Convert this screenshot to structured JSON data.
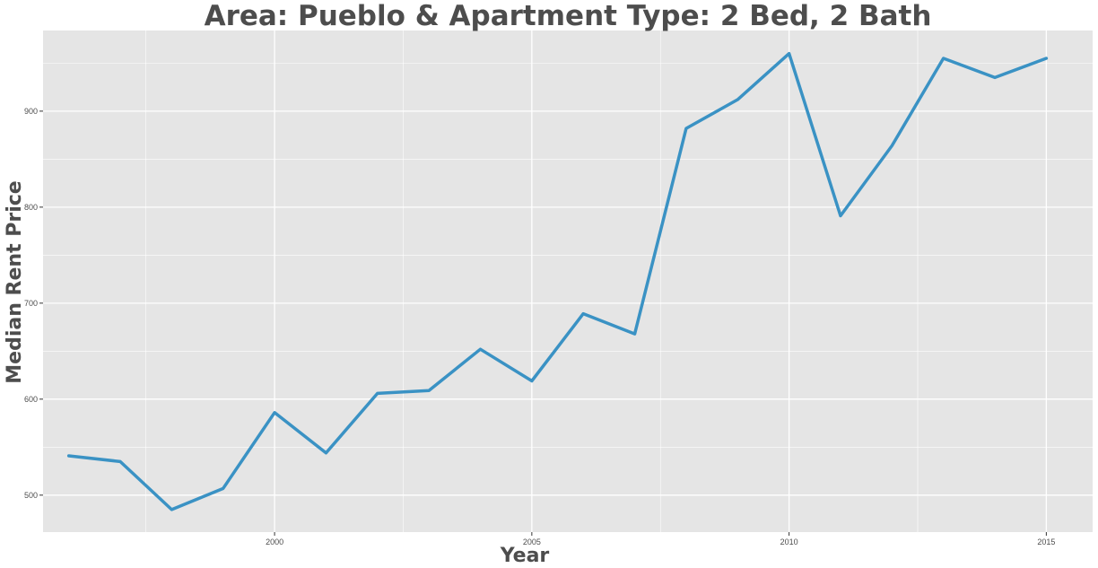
{
  "chart_data": {
    "type": "line",
    "title": "Area: Pueblo & Apartment Type: 2 Bed, 2 Bath",
    "xlabel": "Year",
    "ylabel": "Median Rent Price",
    "x": [
      1996,
      1997,
      1998,
      1999,
      2000,
      2001,
      2002,
      2003,
      2004,
      2005,
      2006,
      2007,
      2008,
      2009,
      2010,
      2011,
      2012,
      2013,
      2014,
      2015
    ],
    "series": [
      {
        "values": [
          541,
          535,
          485,
          507,
          586,
          544,
          606,
          609,
          652,
          619,
          689,
          668,
          882,
          912,
          960,
          791,
          864,
          955,
          935,
          955
        ]
      }
    ],
    "xlim": [
      1995.5,
      2015.9
    ],
    "ylim": [
      461.5,
      984
    ],
    "xticks": [
      2000,
      2005,
      2010,
      2015
    ],
    "yticks": [
      500,
      600,
      700,
      800,
      900
    ],
    "xtick_labels": [
      "2000",
      "2005",
      "2010",
      "2015"
    ],
    "ytick_labels": [
      "500",
      "600",
      "700",
      "800",
      "900"
    ],
    "grid": true,
    "legend": "none",
    "colors": {
      "line": "#3a92c4",
      "panel": "#e5e5e5",
      "grid": "#ffffff",
      "text": "#4d4d4d"
    }
  }
}
